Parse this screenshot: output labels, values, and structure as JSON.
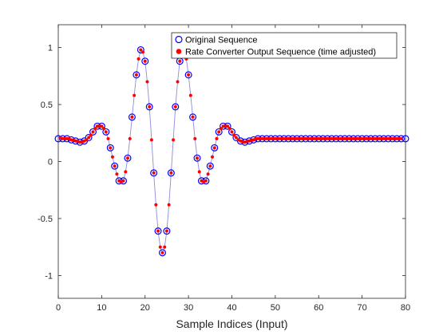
{
  "chart_data": {
    "type": "line",
    "xlabel": "Sample Indices (Input)",
    "ylabel": "",
    "xlim": [
      0,
      80
    ],
    "ylim": [
      -1.2,
      1.2
    ],
    "xticks": [
      "0",
      "10",
      "20",
      "30",
      "40",
      "50",
      "60",
      "70",
      "80"
    ],
    "yticks": [
      "-1",
      "-0.5",
      "0",
      "0.5",
      "1"
    ],
    "legend_position": "top-right",
    "grid": false,
    "colors": {
      "original": "#0000ff",
      "converted": "#ff0000",
      "trace": "#8c8cdc",
      "axis": "#262626"
    },
    "legend": [
      {
        "label": "Original Sequence"
      },
      {
        "label": "Rate Converter Output Sequence (time adjusted)"
      }
    ],
    "series": [
      {
        "name": "Original Sequence",
        "marker": "circle-open",
        "x": [
          0,
          1,
          2,
          3,
          4,
          5,
          6,
          7,
          8,
          9,
          10,
          11,
          12,
          13,
          14,
          15,
          16,
          17,
          18,
          19,
          20,
          21,
          22,
          23,
          24,
          25,
          26,
          27,
          28,
          29,
          30,
          31,
          32,
          33,
          34,
          35,
          36,
          37,
          38,
          39,
          40,
          41,
          42,
          43,
          44,
          45,
          46,
          47,
          48,
          49,
          50,
          51,
          52,
          53,
          54,
          55,
          56,
          57,
          58,
          59,
          60,
          61,
          62,
          63,
          64,
          65,
          66,
          67,
          68,
          69,
          70,
          71,
          72,
          73,
          74,
          75,
          76,
          77,
          78,
          79,
          80
        ],
        "y": [
          0.2,
          0.2,
          0.2,
          0.19,
          0.18,
          0.17,
          0.18,
          0.21,
          0.26,
          0.31,
          0.31,
          0.26,
          0.12,
          -0.04,
          -0.17,
          -0.17,
          0.03,
          0.39,
          0.76,
          0.98,
          0.88,
          0.48,
          -0.1,
          -0.61,
          -0.8,
          -0.61,
          -0.1,
          0.48,
          0.88,
          0.98,
          0.76,
          0.39,
          0.03,
          -0.17,
          -0.17,
          -0.04,
          0.12,
          0.26,
          0.31,
          0.31,
          0.26,
          0.21,
          0.18,
          0.17,
          0.18,
          0.19,
          0.2,
          0.2,
          0.2,
          0.2,
          0.2,
          0.2,
          0.2,
          0.2,
          0.2,
          0.2,
          0.2,
          0.2,
          0.2,
          0.2,
          0.2,
          0.2,
          0.2,
          0.2,
          0.2,
          0.2,
          0.2,
          0.2,
          0.2,
          0.2,
          0.2,
          0.2,
          0.2,
          0.2,
          0.2,
          0.2,
          0.2,
          0.2,
          0.2,
          0.2,
          0.2
        ]
      },
      {
        "name": "Rate Converter Output Sequence (time adjusted)",
        "marker": "dot-filled",
        "x": [
          0.5,
          1.0,
          1.5,
          2.0,
          2.5,
          3.0,
          3.5,
          4.0,
          4.5,
          5.0,
          5.5,
          6.0,
          6.5,
          7.0,
          7.5,
          8.0,
          8.5,
          9.0,
          9.5,
          10.0,
          10.5,
          11.0,
          11.5,
          12.0,
          12.5,
          13.0,
          13.5,
          14.0,
          14.5,
          15.0,
          15.5,
          16.0,
          16.5,
          17.0,
          17.5,
          18.0,
          18.5,
          19.0,
          19.5,
          20.0,
          20.5,
          21.0,
          21.5,
          22.0,
          22.5,
          23.0,
          23.5,
          24.0,
          24.5,
          25.0,
          25.5,
          26.0,
          26.5,
          27.0,
          27.5,
          28.0,
          28.5,
          29.0,
          29.5,
          30.0,
          30.5,
          31.0,
          31.5,
          32.0,
          32.5,
          33.0,
          33.5,
          34.0,
          34.5,
          35.0,
          35.5,
          36.0,
          36.5,
          37.0,
          37.5,
          38.0,
          38.5,
          39.0,
          39.5,
          40.0,
          40.5,
          41.0,
          41.5,
          42.0,
          42.5,
          43.0,
          43.5,
          44.0,
          44.5,
          45.0,
          45.5,
          46.0,
          46.5,
          47.0,
          47.5,
          48.0,
          48.5,
          49.0,
          49.5,
          50.0,
          50.5,
          51.0,
          51.5,
          52.0,
          52.5,
          53.0,
          53.5,
          54.0,
          54.5,
          55.0,
          55.5,
          56.0,
          56.5,
          57.0,
          57.5,
          58.0,
          58.5,
          59.0,
          59.5,
          60.0,
          60.5,
          61.0,
          61.5,
          62.0,
          62.5,
          63.0,
          63.5,
          64.0,
          64.5,
          65.0,
          65.5,
          66.0,
          66.5,
          67.0,
          67.5,
          68.0,
          68.5,
          69.0,
          69.5,
          70.0,
          70.5,
          71.0,
          71.5,
          72.0,
          72.5,
          73.0,
          73.5,
          74.0,
          74.5,
          75.0,
          75.5,
          76.0,
          76.5,
          77.0,
          77.5,
          78.0,
          78.5,
          79.0
        ],
        "y": [
          0.21,
          0.2,
          0.2,
          0.2,
          0.2,
          0.19,
          0.19,
          0.18,
          0.18,
          0.17,
          0.17,
          0.18,
          0.19,
          0.21,
          0.23,
          0.26,
          0.29,
          0.31,
          0.31,
          0.31,
          0.29,
          0.26,
          0.2,
          0.12,
          0.04,
          -0.04,
          -0.11,
          -0.17,
          -0.18,
          -0.17,
          -0.09,
          0.03,
          0.2,
          0.39,
          0.58,
          0.76,
          0.9,
          0.98,
          0.96,
          0.88,
          0.7,
          0.48,
          0.19,
          -0.1,
          -0.38,
          -0.61,
          -0.75,
          -0.8,
          -0.75,
          -0.61,
          -0.38,
          -0.1,
          0.19,
          0.48,
          0.7,
          0.88,
          0.96,
          0.98,
          0.9,
          0.76,
          0.58,
          0.39,
          0.2,
          0.03,
          -0.09,
          -0.17,
          -0.18,
          -0.17,
          -0.11,
          -0.04,
          0.04,
          0.12,
          0.2,
          0.26,
          0.29,
          0.31,
          0.31,
          0.31,
          0.29,
          0.26,
          0.23,
          0.21,
          0.19,
          0.18,
          0.17,
          0.17,
          0.18,
          0.18,
          0.19,
          0.19,
          0.2,
          0.2,
          0.2,
          0.2,
          0.2,
          0.2,
          0.2,
          0.2,
          0.2,
          0.2,
          0.2,
          0.2,
          0.2,
          0.2,
          0.2,
          0.2,
          0.2,
          0.2,
          0.2,
          0.2,
          0.2,
          0.2,
          0.2,
          0.2,
          0.2,
          0.2,
          0.2,
          0.2,
          0.2,
          0.2,
          0.2,
          0.2,
          0.2,
          0.2,
          0.2,
          0.2,
          0.2,
          0.2,
          0.2,
          0.2,
          0.2,
          0.2,
          0.2,
          0.2,
          0.2,
          0.2,
          0.2,
          0.2,
          0.2,
          0.2,
          0.2,
          0.2,
          0.2,
          0.2,
          0.2,
          0.2,
          0.2,
          0.2,
          0.2,
          0.2,
          0.2,
          0.2,
          0.2,
          0.2,
          0.2,
          0.2,
          0.2,
          0.2
        ]
      }
    ]
  }
}
